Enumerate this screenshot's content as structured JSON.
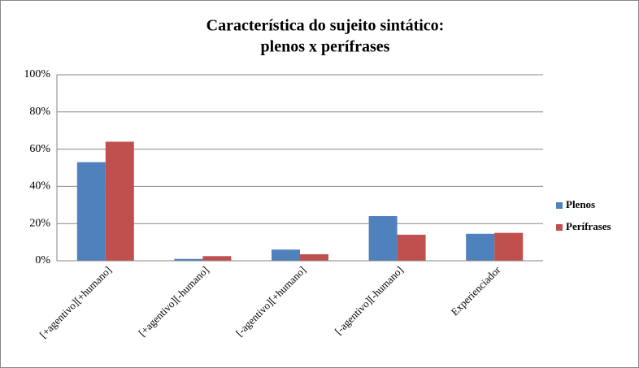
{
  "chart_data": {
    "type": "bar",
    "title": [
      "Característica do sujeito sintático:",
      "plenos x perífrases"
    ],
    "categories": [
      "[+agentivo][+humano]",
      "[+agentivo][-humano]",
      "[-agentivo][+humano]",
      "[-agentivo][-humano]",
      "Experienciador"
    ],
    "series": [
      {
        "name": "Plenos",
        "color": "#4f81bd",
        "values": [
          53,
          1,
          6,
          24,
          14.5
        ]
      },
      {
        "name": "Perífrases",
        "color": "#c0504d",
        "values": [
          64,
          2.5,
          3.5,
          14,
          15
        ]
      }
    ],
    "ylim": [
      0,
      100
    ],
    "yticks": [
      {
        "value": 0,
        "label": "0%"
      },
      {
        "value": 20,
        "label": "20%"
      },
      {
        "value": 40,
        "label": "40%"
      },
      {
        "value": 60,
        "label": "60%"
      },
      {
        "value": 80,
        "label": "80%"
      },
      {
        "value": 100,
        "label": "100%"
      }
    ],
    "grid": true,
    "legend": "right"
  }
}
